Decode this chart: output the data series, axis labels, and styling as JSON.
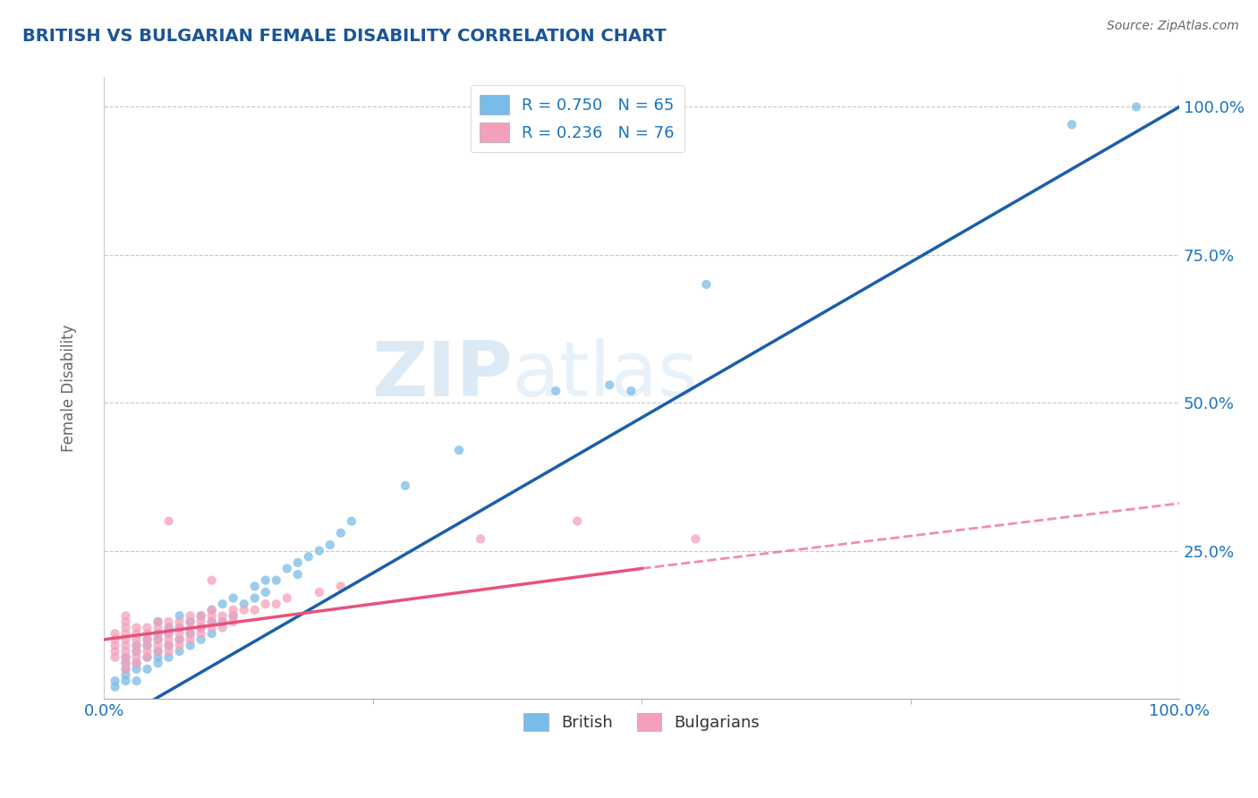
{
  "title": "BRITISH VS BULGARIAN FEMALE DISABILITY CORRELATION CHART",
  "source": "Source: ZipAtlas.com",
  "ylabel": "Female Disability",
  "watermark_zip": "ZIP",
  "watermark_atlas": "atlas",
  "british_R": 0.75,
  "british_N": 65,
  "bulgarian_R": 0.236,
  "bulgarian_N": 76,
  "british_color": "#7abce8",
  "bulgarian_color": "#f5a0bb",
  "british_line_color": "#1a5fa8",
  "bulgarian_line_color": "#e8527a",
  "legend_british_label": "R = 0.750   N = 65",
  "legend_bulgarian_label": "R = 0.236   N = 76",
  "bottom_legend_british": "British",
  "bottom_legend_bulgarian": "Bulgarians",
  "title_color": "#1a5596",
  "axis_label_color": "#666666",
  "tick_color": "#1a72c0",
  "british_line": [
    0.0,
    -0.05,
    1.0,
    1.0
  ],
  "bulgarian_line_solid": [
    0.0,
    0.1,
    0.5,
    0.22
  ],
  "bulgarian_line_dashed": [
    0.5,
    0.22,
    1.0,
    0.33
  ],
  "british_scatter_x": [
    0.01,
    0.01,
    0.02,
    0.02,
    0.02,
    0.02,
    0.02,
    0.03,
    0.03,
    0.03,
    0.03,
    0.03,
    0.04,
    0.04,
    0.04,
    0.04,
    0.05,
    0.05,
    0.05,
    0.05,
    0.05,
    0.05,
    0.06,
    0.06,
    0.06,
    0.06,
    0.07,
    0.07,
    0.07,
    0.07,
    0.08,
    0.08,
    0.08,
    0.09,
    0.09,
    0.09,
    0.1,
    0.1,
    0.1,
    0.11,
    0.11,
    0.12,
    0.12,
    0.13,
    0.14,
    0.14,
    0.15,
    0.15,
    0.16,
    0.17,
    0.18,
    0.18,
    0.19,
    0.2,
    0.21,
    0.22,
    0.23,
    0.28,
    0.33,
    0.42,
    0.47,
    0.49,
    0.56,
    0.9,
    0.96
  ],
  "british_scatter_y": [
    0.02,
    0.03,
    0.03,
    0.04,
    0.05,
    0.06,
    0.07,
    0.03,
    0.05,
    0.06,
    0.08,
    0.09,
    0.05,
    0.07,
    0.09,
    0.1,
    0.06,
    0.07,
    0.08,
    0.1,
    0.11,
    0.13,
    0.07,
    0.09,
    0.11,
    0.12,
    0.08,
    0.1,
    0.12,
    0.14,
    0.09,
    0.11,
    0.13,
    0.1,
    0.12,
    0.14,
    0.11,
    0.13,
    0.15,
    0.13,
    0.16,
    0.14,
    0.17,
    0.16,
    0.17,
    0.19,
    0.18,
    0.2,
    0.2,
    0.22,
    0.21,
    0.23,
    0.24,
    0.25,
    0.26,
    0.28,
    0.3,
    0.36,
    0.42,
    0.52,
    0.53,
    0.52,
    0.7,
    0.97,
    1.0
  ],
  "bulgarian_scatter_x": [
    0.01,
    0.01,
    0.01,
    0.01,
    0.01,
    0.02,
    0.02,
    0.02,
    0.02,
    0.02,
    0.02,
    0.02,
    0.02,
    0.02,
    0.02,
    0.03,
    0.03,
    0.03,
    0.03,
    0.03,
    0.03,
    0.03,
    0.04,
    0.04,
    0.04,
    0.04,
    0.04,
    0.04,
    0.05,
    0.05,
    0.05,
    0.05,
    0.05,
    0.05,
    0.06,
    0.06,
    0.06,
    0.06,
    0.06,
    0.06,
    0.07,
    0.07,
    0.07,
    0.07,
    0.07,
    0.08,
    0.08,
    0.08,
    0.08,
    0.08,
    0.09,
    0.09,
    0.09,
    0.09,
    0.1,
    0.1,
    0.1,
    0.1,
    0.11,
    0.11,
    0.11,
    0.12,
    0.12,
    0.12,
    0.13,
    0.14,
    0.15,
    0.16,
    0.06,
    0.1,
    0.35,
    0.44,
    0.55,
    0.17,
    0.2,
    0.22
  ],
  "bulgarian_scatter_y": [
    0.07,
    0.08,
    0.09,
    0.1,
    0.11,
    0.07,
    0.08,
    0.09,
    0.1,
    0.11,
    0.12,
    0.13,
    0.14,
    0.06,
    0.05,
    0.06,
    0.07,
    0.08,
    0.09,
    0.1,
    0.11,
    0.12,
    0.07,
    0.08,
    0.09,
    0.1,
    0.11,
    0.12,
    0.08,
    0.09,
    0.1,
    0.11,
    0.12,
    0.13,
    0.08,
    0.09,
    0.1,
    0.11,
    0.12,
    0.13,
    0.09,
    0.1,
    0.11,
    0.12,
    0.13,
    0.1,
    0.11,
    0.12,
    0.13,
    0.14,
    0.11,
    0.12,
    0.13,
    0.14,
    0.12,
    0.13,
    0.14,
    0.15,
    0.12,
    0.13,
    0.14,
    0.13,
    0.14,
    0.15,
    0.15,
    0.15,
    0.16,
    0.16,
    0.3,
    0.2,
    0.27,
    0.3,
    0.27,
    0.17,
    0.18,
    0.19
  ]
}
